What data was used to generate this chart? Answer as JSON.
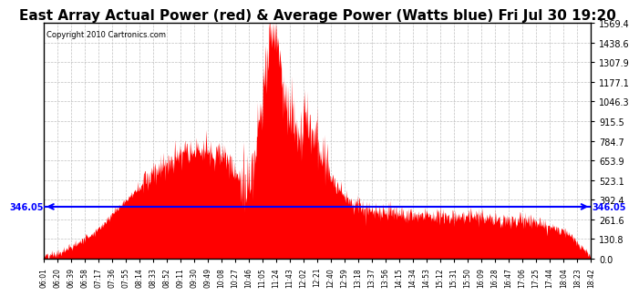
{
  "title": "East Array Actual Power (red) & Average Power (Watts blue) Fri Jul 30 19:20",
  "copyright": "Copyright 2010 Cartronics.com",
  "y_max": 1569.4,
  "y_min": 0.0,
  "y_ticks": [
    0.0,
    130.8,
    261.6,
    392.4,
    523.1,
    653.9,
    784.7,
    915.5,
    1046.3,
    1177.1,
    1307.9,
    1438.6,
    1569.4
  ],
  "avg_line_value": 346.05,
  "avg_line_label": "346.05",
  "background_color": "#ffffff",
  "fill_color": "#ff0000",
  "line_color": "#0000ff",
  "title_fontsize": 11,
  "x_labels": [
    "06:01",
    "06:20",
    "06:39",
    "06:58",
    "07:17",
    "07:36",
    "07:55",
    "08:14",
    "08:33",
    "08:52",
    "09:11",
    "09:30",
    "09:49",
    "10:08",
    "10:27",
    "10:46",
    "11:05",
    "11:24",
    "11:43",
    "12:02",
    "12:21",
    "12:40",
    "12:59",
    "13:18",
    "13:37",
    "13:56",
    "14:15",
    "14:34",
    "14:53",
    "15:12",
    "15:31",
    "15:50",
    "16:09",
    "16:28",
    "16:47",
    "17:06",
    "17:25",
    "17:44",
    "18:04",
    "18:23",
    "18:42"
  ],
  "envelope_times": [
    0.0,
    0.03,
    0.06,
    0.1,
    0.13,
    0.17,
    0.2,
    0.23,
    0.27,
    0.3,
    0.33,
    0.35,
    0.37,
    0.38,
    0.39,
    0.4,
    0.41,
    0.42,
    0.43,
    0.44,
    0.46,
    0.48,
    0.5,
    0.52,
    0.54,
    0.56,
    0.58,
    0.6,
    0.63,
    0.66,
    0.7,
    0.74,
    0.78,
    0.82,
    0.86,
    0.9,
    0.93,
    0.96,
    0.98,
    1.0
  ],
  "envelope_vals": [
    10,
    40,
    100,
    200,
    320,
    460,
    580,
    660,
    720,
    730,
    680,
    580,
    440,
    550,
    780,
    1100,
    1450,
    1569,
    1400,
    1100,
    800,
    950,
    750,
    560,
    460,
    380,
    340,
    310,
    310,
    300,
    290,
    285,
    280,
    270,
    260,
    240,
    210,
    160,
    80,
    20
  ]
}
